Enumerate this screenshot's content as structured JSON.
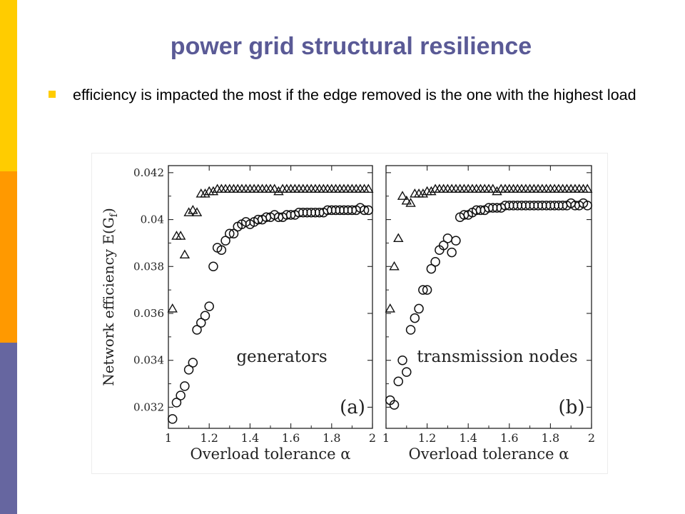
{
  "slide": {
    "title": "power grid structural resilience",
    "bullets": [
      "efficiency is impacted the most if the edge removed is the one with the highest load"
    ]
  },
  "colors": {
    "title": "#5a5a96",
    "bar_top": "#ffcc00",
    "bar_mid": "#ff9900",
    "bar_bottom": "#6666a0",
    "bullet": "#ffcc00"
  },
  "icons": {
    "bullet": "square-bullet"
  },
  "chart_data": [
    {
      "panel": "(a)",
      "type": "scatter",
      "annotation": "generators",
      "tag": "(a)",
      "xlabel": "Overload tolerance α",
      "ylabel": "Network efficiency E(G_f)",
      "xlim": [
        1.0,
        2.0
      ],
      "ylim": [
        0.0311,
        0.0423
      ],
      "xticks": [
        "1",
        "1.2",
        "1.4",
        "1.6",
        "1.8",
        "2"
      ],
      "yticks": [
        "0.032",
        "0.034",
        "0.036",
        "0.038",
        "0.04",
        "0.042"
      ],
      "grid": false,
      "series": [
        {
          "marker": "triangle",
          "x": [
            1.02,
            1.04,
            1.06,
            1.08,
            1.1,
            1.12,
            1.14,
            1.16,
            1.18,
            1.2,
            1.22,
            1.24,
            1.26,
            1.28,
            1.3,
            1.32,
            1.34,
            1.36,
            1.38,
            1.4,
            1.42,
            1.44,
            1.46,
            1.48,
            1.5,
            1.52,
            1.54,
            1.56,
            1.58,
            1.6,
            1.62,
            1.64,
            1.66,
            1.68,
            1.7,
            1.72,
            1.74,
            1.76,
            1.78,
            1.8,
            1.82,
            1.84,
            1.86,
            1.88,
            1.9,
            1.92,
            1.94,
            1.96,
            1.98
          ],
          "y": [
            0.0362,
            0.0393,
            0.0393,
            0.0385,
            0.0403,
            0.0404,
            0.0403,
            0.0411,
            0.0411,
            0.0412,
            0.0412,
            0.0413,
            0.0413,
            0.0413,
            0.0413,
            0.0413,
            0.0413,
            0.0413,
            0.0413,
            0.0413,
            0.0413,
            0.0413,
            0.0413,
            0.0413,
            0.0413,
            0.0413,
            0.0412,
            0.0413,
            0.0413,
            0.0413,
            0.0413,
            0.0413,
            0.0413,
            0.0413,
            0.0413,
            0.0413,
            0.0413,
            0.0413,
            0.0413,
            0.0413,
            0.0413,
            0.0413,
            0.0413,
            0.0413,
            0.0413,
            0.0413,
            0.0413,
            0.0413,
            0.0413
          ]
        },
        {
          "marker": "circle",
          "x": [
            1.02,
            1.04,
            1.06,
            1.08,
            1.1,
            1.12,
            1.14,
            1.16,
            1.18,
            1.2,
            1.22,
            1.24,
            1.26,
            1.28,
            1.3,
            1.32,
            1.34,
            1.36,
            1.38,
            1.4,
            1.42,
            1.44,
            1.46,
            1.48,
            1.5,
            1.52,
            1.54,
            1.56,
            1.58,
            1.6,
            1.62,
            1.64,
            1.66,
            1.68,
            1.7,
            1.72,
            1.74,
            1.76,
            1.78,
            1.8,
            1.82,
            1.84,
            1.86,
            1.88,
            1.9,
            1.92,
            1.94,
            1.96,
            1.98
          ],
          "y": [
            0.0315,
            0.0322,
            0.0325,
            0.0329,
            0.0336,
            0.0339,
            0.0353,
            0.0356,
            0.0359,
            0.0363,
            0.038,
            0.0388,
            0.0387,
            0.0391,
            0.0394,
            0.0394,
            0.0397,
            0.0398,
            0.0399,
            0.0398,
            0.0399,
            0.04,
            0.04,
            0.0401,
            0.0401,
            0.0402,
            0.0401,
            0.0401,
            0.0402,
            0.0402,
            0.0402,
            0.0403,
            0.0403,
            0.0403,
            0.0403,
            0.0403,
            0.0403,
            0.0403,
            0.0404,
            0.0404,
            0.0404,
            0.0404,
            0.0404,
            0.0404,
            0.0404,
            0.0404,
            0.0405,
            0.0404,
            0.0404
          ]
        }
      ]
    },
    {
      "panel": "(b)",
      "type": "scatter",
      "annotation": "transmission nodes",
      "tag": "(b)",
      "xlabel": "Overload tolerance α",
      "ylabel": "",
      "xlim": [
        1.0,
        2.0
      ],
      "ylim": [
        0.0311,
        0.0423
      ],
      "xticks": [
        "1",
        "1.2",
        "1.4",
        "1.6",
        "1.8",
        "2"
      ],
      "yticks": [],
      "grid": false,
      "series": [
        {
          "marker": "triangle",
          "x": [
            1.02,
            1.04,
            1.06,
            1.08,
            1.1,
            1.12,
            1.14,
            1.16,
            1.18,
            1.2,
            1.22,
            1.24,
            1.26,
            1.28,
            1.3,
            1.32,
            1.34,
            1.36,
            1.38,
            1.4,
            1.42,
            1.44,
            1.46,
            1.48,
            1.5,
            1.52,
            1.54,
            1.56,
            1.58,
            1.6,
            1.62,
            1.64,
            1.66,
            1.68,
            1.7,
            1.72,
            1.74,
            1.76,
            1.78,
            1.8,
            1.82,
            1.84,
            1.86,
            1.88,
            1.9,
            1.92,
            1.94,
            1.96,
            1.98
          ],
          "y": [
            0.0362,
            0.038,
            0.0392,
            0.041,
            0.0408,
            0.0407,
            0.0411,
            0.0411,
            0.0411,
            0.0412,
            0.0412,
            0.0413,
            0.0413,
            0.0413,
            0.0413,
            0.0413,
            0.0413,
            0.0413,
            0.0413,
            0.0413,
            0.0413,
            0.0413,
            0.0413,
            0.0413,
            0.0413,
            0.0413,
            0.0412,
            0.0413,
            0.0413,
            0.0413,
            0.0413,
            0.0413,
            0.0413,
            0.0413,
            0.0413,
            0.0413,
            0.0413,
            0.0413,
            0.0413,
            0.0413,
            0.0413,
            0.0413,
            0.0413,
            0.0413,
            0.0413,
            0.0413,
            0.0413,
            0.0413,
            0.0413
          ]
        },
        {
          "marker": "circle",
          "x": [
            1.02,
            1.04,
            1.06,
            1.08,
            1.1,
            1.12,
            1.14,
            1.16,
            1.18,
            1.2,
            1.22,
            1.24,
            1.26,
            1.28,
            1.3,
            1.32,
            1.34,
            1.36,
            1.38,
            1.4,
            1.42,
            1.44,
            1.46,
            1.48,
            1.5,
            1.52,
            1.54,
            1.56,
            1.58,
            1.6,
            1.62,
            1.64,
            1.66,
            1.68,
            1.7,
            1.72,
            1.74,
            1.76,
            1.78,
            1.8,
            1.82,
            1.84,
            1.86,
            1.88,
            1.9,
            1.92,
            1.94,
            1.96,
            1.98
          ],
          "y": [
            0.0323,
            0.0321,
            0.0331,
            0.034,
            0.0335,
            0.0353,
            0.0358,
            0.0362,
            0.037,
            0.037,
            0.0379,
            0.0382,
            0.0387,
            0.0389,
            0.0392,
            0.0386,
            0.0391,
            0.0401,
            0.0402,
            0.0402,
            0.0403,
            0.0404,
            0.0404,
            0.0404,
            0.0405,
            0.0405,
            0.0405,
            0.0405,
            0.0406,
            0.0406,
            0.0406,
            0.0406,
            0.0406,
            0.0406,
            0.0406,
            0.0406,
            0.0406,
            0.0406,
            0.0406,
            0.0406,
            0.0406,
            0.0406,
            0.0406,
            0.0406,
            0.0407,
            0.0406,
            0.0406,
            0.0407,
            0.0406
          ]
        }
      ]
    }
  ]
}
